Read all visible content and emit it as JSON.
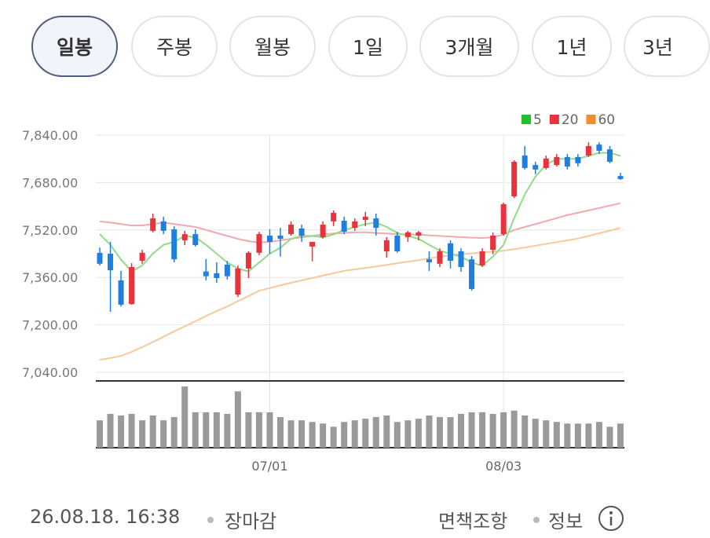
{
  "tabs": {
    "items": [
      "일봉",
      "주봉",
      "월봉",
      "1일",
      "3개월",
      "1년",
      "3년"
    ],
    "selected": 0
  },
  "chart_data": {
    "type": "candlestick",
    "up_color": "#e8323c",
    "down_color": "#1e7fe0",
    "categories": [
      null,
      null,
      null,
      null,
      null,
      null,
      null,
      null,
      null,
      null,
      null,
      null,
      null,
      null,
      null,
      null,
      "07/01",
      null,
      null,
      null,
      null,
      null,
      null,
      null,
      null,
      null,
      null,
      null,
      null,
      null,
      null,
      null,
      null,
      null,
      null,
      null,
      null,
      null,
      "08/03",
      null,
      null,
      null,
      null,
      null,
      null,
      null,
      null,
      null,
      null,
      null
    ],
    "open": [
      7443,
      7440,
      7350,
      7270,
      7416,
      7517,
      7549,
      7522,
      7485,
      7506,
      7380,
      7374,
      7403,
      7302,
      7390,
      7443,
      7501,
      7501,
      7506,
      7525,
      7464,
      7496,
      7549,
      7551,
      7527,
      7554,
      7559,
      7448,
      7501,
      7496,
      7501,
      7421,
      7406,
      7475,
      7448,
      7421,
      7400,
      7453,
      7506,
      7633,
      7771,
      7739,
      7729,
      7739,
      7766,
      7766,
      7771,
      7808,
      7792,
      7702
    ],
    "close": [
      7406,
      7384,
      7268,
      7395,
      7443,
      7559,
      7517,
      7421,
      7506,
      7469,
      7364,
      7358,
      7364,
      7390,
      7443,
      7506,
      7480,
      7490,
      7538,
      7501,
      7480,
      7538,
      7578,
      7514,
      7549,
      7565,
      7527,
      7485,
      7448,
      7512,
      7512,
      7411,
      7448,
      7416,
      7395,
      7321,
      7448,
      7501,
      7607,
      7750,
      7729,
      7724,
      7761,
      7766,
      7734,
      7745,
      7803,
      7787,
      7750,
      7692
    ],
    "high": [
      7461,
      7480,
      7382,
      7408,
      7453,
      7575,
      7565,
      7533,
      7517,
      7522,
      7422,
      7411,
      7416,
      7400,
      7448,
      7514,
      7522,
      7527,
      7549,
      7538,
      7472,
      7549,
      7586,
      7565,
      7559,
      7581,
      7575,
      7496,
      7514,
      7517,
      7517,
      7448,
      7458,
      7485,
      7458,
      7432,
      7458,
      7512,
      7612,
      7755,
      7803,
      7750,
      7771,
      7776,
      7776,
      7776,
      7816,
      7816,
      7803,
      7713
    ],
    "low": [
      7400,
      7244,
      7262,
      7268,
      7406,
      7512,
      7506,
      7411,
      7469,
      7464,
      7350,
      7342,
      7353,
      7294,
      7358,
      7435,
      7440,
      7430,
      7501,
      7480,
      7414,
      7491,
      7533,
      7506,
      7517,
      7533,
      7501,
      7427,
      7443,
      7480,
      7485,
      7382,
      7395,
      7390,
      7379,
      7315,
      7395,
      7438,
      7501,
      7628,
      7724,
      7708,
      7724,
      7734,
      7724,
      7734,
      7766,
      7776,
      7745,
      7689
    ],
    "ma": [
      {
        "name": "5",
        "color": "#22c02a",
        "line": "#8fdc8a",
        "values": [
          7506,
          7470,
          7420,
          7380,
          7400,
          7440,
          7470,
          7480,
          7500,
          7495,
          7470,
          7440,
          7410,
          7390,
          7380,
          7410,
          7440,
          7460,
          7490,
          7500,
          7500,
          7495,
          7505,
          7520,
          7530,
          7540,
          7545,
          7530,
          7510,
          7500,
          7490,
          7470,
          7450,
          7440,
          7430,
          7410,
          7400,
          7430,
          7470,
          7560,
          7640,
          7700,
          7740,
          7760,
          7760,
          7760,
          7770,
          7780,
          7780,
          7770
        ]
      },
      {
        "name": "20",
        "color": "#e8323c",
        "line": "#f2a9ad",
        "values": [
          7549,
          7545,
          7540,
          7535,
          7535,
          7540,
          7545,
          7540,
          7535,
          7530,
          7520,
          7510,
          7500,
          7490,
          7482,
          7478,
          7480,
          7485,
          7490,
          7495,
          7500,
          7505,
          7508,
          7510,
          7512,
          7512,
          7510,
          7508,
          7506,
          7505,
          7504,
          7502,
          7500,
          7498,
          7496,
          7494,
          7493,
          7495,
          7505,
          7520,
          7530,
          7540,
          7550,
          7560,
          7570,
          7578,
          7586,
          7594,
          7602,
          7610
        ]
      },
      {
        "name": "60",
        "color": "#f08c2c",
        "line": "#f7c89a",
        "values": [
          7082,
          7088,
          7095,
          7109,
          7125,
          7142,
          7160,
          7178,
          7195,
          7212,
          7230,
          7246,
          7262,
          7280,
          7297,
          7315,
          7324,
          7333,
          7342,
          7350,
          7358,
          7366,
          7374,
          7382,
          7387,
          7392,
          7397,
          7402,
          7408,
          7413,
          7418,
          7424,
          7430,
          7435,
          7438,
          7441,
          7444,
          7447,
          7450,
          7455,
          7461,
          7467,
          7473,
          7479,
          7485,
          7491,
          7500,
          7509,
          7518,
          7527
        ]
      }
    ],
    "ylim": [
      7040,
      7840
    ],
    "yticks": [
      {
        "value": 7040,
        "label": "7,040.00"
      },
      {
        "value": 7200,
        "label": "7,200.00"
      },
      {
        "value": 7360,
        "label": "7,360.00"
      },
      {
        "value": 7520,
        "label": "7,520.00"
      },
      {
        "value": 7680,
        "label": "7,680.00"
      },
      {
        "value": 7840,
        "label": "7,840.00"
      }
    ],
    "grid": true,
    "volume": {
      "color": "#9a9a9a",
      "ylim": [
        0,
        80
      ],
      "values": [
        34,
        42,
        40,
        42,
        34,
        40,
        34,
        38,
        76,
        44,
        44,
        44,
        42,
        70,
        44,
        44,
        44,
        38,
        34,
        34,
        32,
        30,
        26,
        32,
        34,
        36,
        38,
        40,
        32,
        34,
        36,
        40,
        38,
        38,
        42,
        44,
        44,
        42,
        44,
        46,
        40,
        36,
        34,
        32,
        30,
        30,
        30,
        32,
        26,
        30
      ]
    }
  },
  "footer": {
    "datetime": "26.08.18. 16:38",
    "status": "장마감",
    "links": [
      "면책조항",
      "정보"
    ]
  }
}
